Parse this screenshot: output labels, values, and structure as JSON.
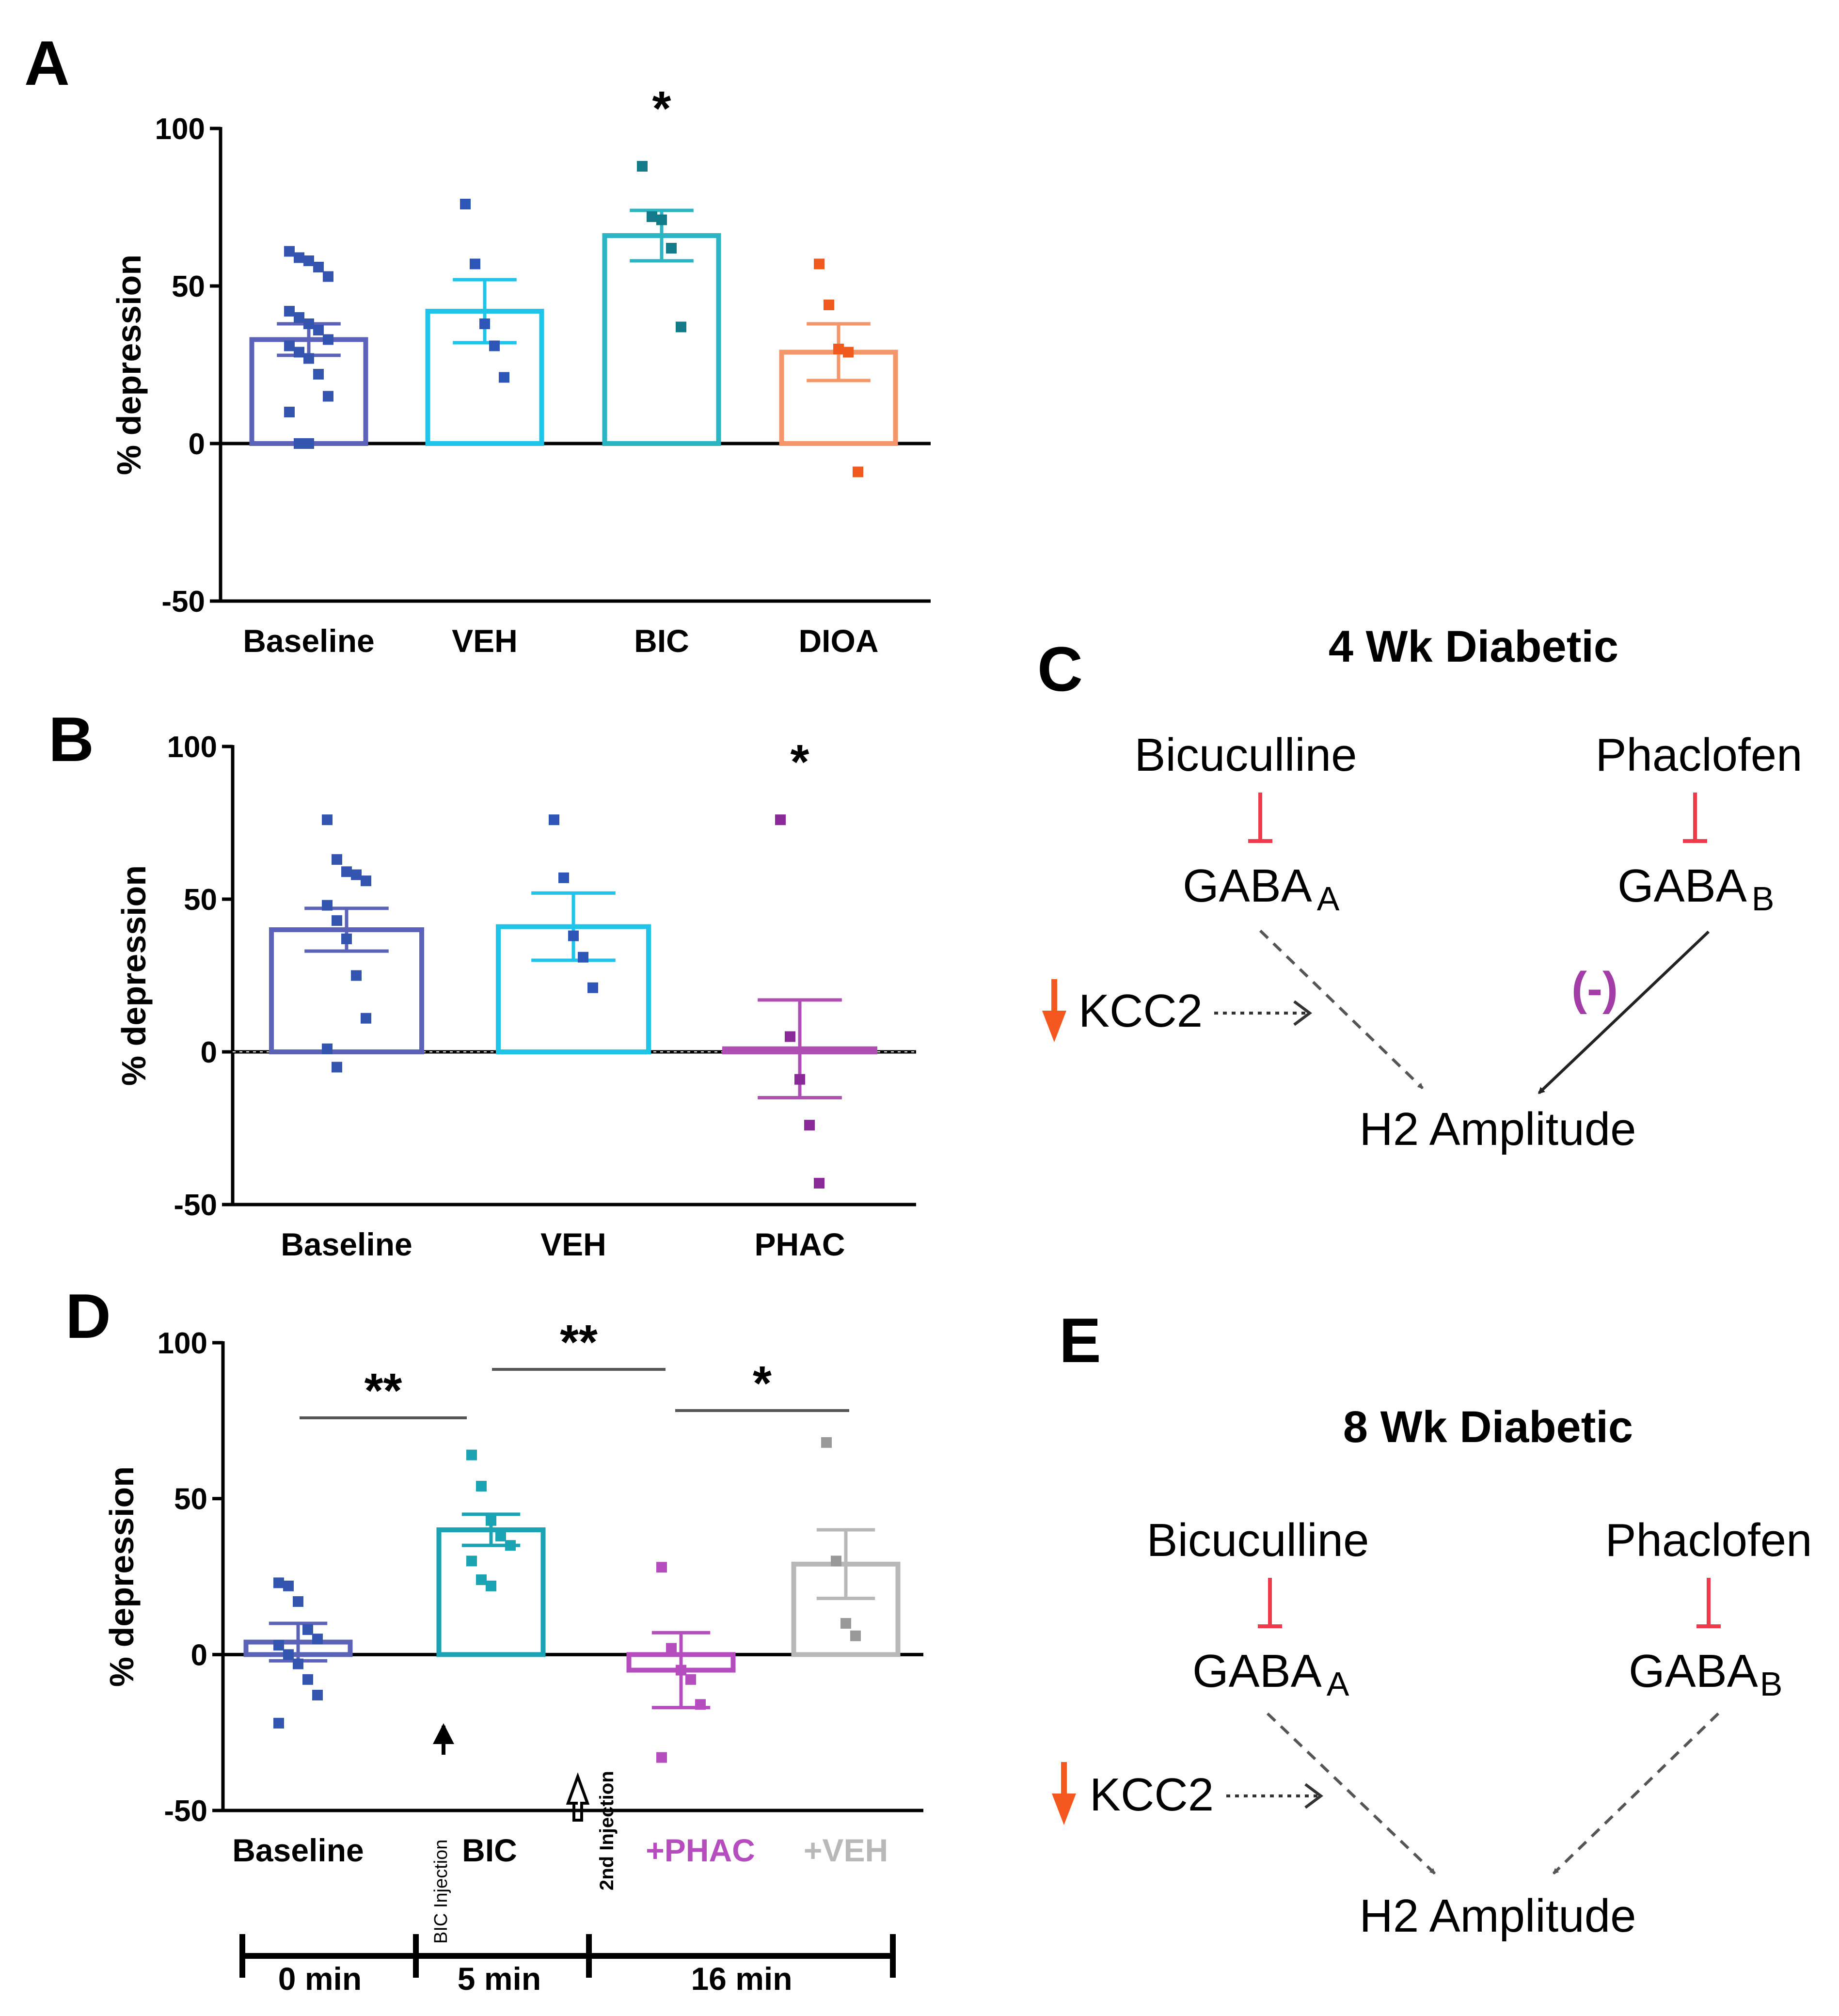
{
  "colors": {
    "axis": "#000000",
    "baseline_blue": "#5b63b8",
    "baseline_points": "#3355b0",
    "veh_cyan": "#1ec4ea",
    "veh_points": "#2d56b8",
    "bic_teal": "#29b5c2",
    "bic_points": "#137a8a",
    "dioa_orange": "#f4966a",
    "dioa_points": "#f05a1e",
    "phac_purple": "#b04eb6",
    "phac_points": "#8a2a99",
    "bic_d": "#1aa3b3",
    "phac_d": "#b54dbf",
    "veh_gray": "#b8b8b8",
    "veh_gray_points": "#999999",
    "red_inhibit": "#ee3a4b",
    "kcc2_arrow": "#f5581f",
    "minus_purple": "#a23ca6",
    "dashed_arrow": "#555555"
  },
  "panels": {
    "A": {
      "label": "A"
    },
    "B": {
      "label": "B"
    },
    "D": {
      "label": "D",
      "bic_injection_label": "BIC Injection",
      "second_injection_label": "2nd Injection",
      "timeline": {
        "ticks": [
          "0 min",
          "5 min",
          "16 min"
        ]
      }
    },
    "C": {
      "label": "C",
      "title": "4 Wk Diabetic",
      "left_drug": "Bicuculline",
      "right_drug": "Phaclofen",
      "left_receptor": "GABA",
      "left_receptor_sub": "A",
      "right_receptor": "GABA",
      "right_receptor_sub": "B",
      "kcc2": "KCC2",
      "effect_sign": "(-)",
      "outcome": "H2 Amplitude"
    },
    "E": {
      "label": "E",
      "title": "8 Wk Diabetic",
      "left_drug": "Bicuculline",
      "right_drug": "Phaclofen",
      "left_receptor": "GABA",
      "left_receptor_sub": "A",
      "right_receptor": "GABA",
      "right_receptor_sub": "B",
      "kcc2": "KCC2",
      "outcome": "H2 Amplitude"
    }
  },
  "chart_data": [
    {
      "panel": "A",
      "type": "bar",
      "ylabel": "% depression",
      "ylim": [
        -50,
        100
      ],
      "yticks": [
        -50,
        0,
        50,
        100
      ],
      "categories": [
        "Baseline",
        "VEH",
        "BIC",
        "DIOA"
      ],
      "means": [
        33,
        42,
        66,
        29
      ],
      "sem": [
        5,
        10,
        8,
        9
      ],
      "annotations": [
        {
          "category": "BIC",
          "text": "*"
        }
      ],
      "points": [
        [
          61,
          59,
          58,
          56,
          53,
          42,
          40,
          38,
          36,
          33,
          31,
          29,
          27,
          22,
          15,
          10,
          0,
          0
        ],
        [
          76,
          57,
          38,
          31,
          21
        ],
        [
          88,
          72,
          71,
          62,
          37
        ],
        [
          57,
          44,
          30,
          29,
          -9
        ]
      ]
    },
    {
      "panel": "B",
      "type": "bar",
      "ylabel": "% depression",
      "ylim": [
        -50,
        100
      ],
      "yticks": [
        -50,
        0,
        50,
        100
      ],
      "categories": [
        "Baseline",
        "VEH",
        "PHAC"
      ],
      "means": [
        40,
        41,
        1
      ],
      "sem": [
        7,
        11,
        16
      ],
      "annotations": [
        {
          "category": "PHAC",
          "text": "*"
        }
      ],
      "points": [
        [
          76,
          63,
          59,
          58,
          56,
          48,
          43,
          37,
          25,
          11,
          1,
          -5
        ],
        [
          76,
          57,
          38,
          31,
          21
        ],
        [
          76,
          5,
          -9,
          -24,
          -43
        ]
      ]
    },
    {
      "panel": "D",
      "type": "bar",
      "ylabel": "% depression",
      "ylim": [
        -50,
        100
      ],
      "yticks": [
        -50,
        0,
        50,
        100
      ],
      "categories": [
        "Baseline",
        "BIC",
        "+PHAC",
        "+VEH"
      ],
      "means": [
        4,
        40,
        -5,
        29
      ],
      "sem": [
        6,
        5,
        12,
        11
      ],
      "comparisons": [
        {
          "from": "Baseline",
          "to": "BIC",
          "text": "**"
        },
        {
          "from": "BIC",
          "to": "+PHAC",
          "text": "**"
        },
        {
          "from": "+PHAC",
          "to": "+VEH",
          "text": "*"
        }
      ],
      "points": [
        [
          23,
          22,
          17,
          8,
          5,
          3,
          0,
          -3,
          -8,
          -13,
          -22
        ],
        [
          64,
          54,
          43,
          38,
          35,
          30,
          24,
          22
        ],
        [
          28,
          2,
          -5,
          -8,
          -16,
          -33
        ],
        [
          68,
          30,
          10,
          6
        ]
      ]
    }
  ]
}
